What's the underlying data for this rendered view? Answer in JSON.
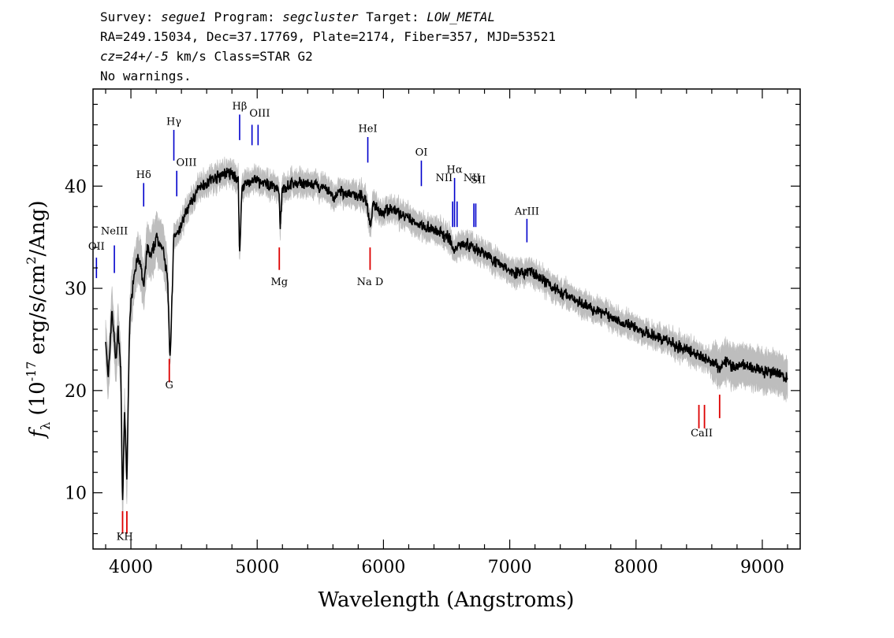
{
  "header": {
    "survey_label": "Survey:",
    "survey": "segue1",
    "program_label": "Program:",
    "program": "segcluster",
    "target_label": "Target:",
    "target": "LOW_METAL",
    "line2": "RA=249.15034, Dec=37.17769, Plate=2174, Fiber=357, MJD=53521",
    "cz": "cz=24+/-5",
    "line3_rest": " km/s Class=STAR G2",
    "line4": "No warnings."
  },
  "chart_data": {
    "type": "line",
    "xlabel": "Wavelength (Angstroms)",
    "ylabel": "f_λ (10^-17 erg/s/cm^2/Ang)",
    "xlim": [
      3700,
      9300
    ],
    "ylim": [
      4.5,
      49.5
    ],
    "xticks": [
      4000,
      5000,
      6000,
      7000,
      8000,
      9000
    ],
    "yticks": [
      10,
      20,
      30,
      40
    ],
    "colors": {
      "spectrum": "#000000",
      "error_band": "#bdbdbd",
      "emission": "#0000cc",
      "absorption": "#dd0000"
    },
    "series": [
      {
        "x": [
          3800,
          3820,
          3850,
          3880,
          3900,
          3920,
          3934,
          3950,
          3968,
          3990,
          4020,
          4050,
          4080,
          4101,
          4130,
          4160,
          4200,
          4250,
          4290,
          4310,
          4340,
          4360,
          4380,
          4420,
          4480,
          4550,
          4620,
          4700,
          4760,
          4820,
          4850,
          4861,
          4880,
          4920,
          4980,
          5050,
          5120,
          5170,
          5183,
          5200,
          5270,
          5350,
          5420,
          5500,
          5580,
          5600,
          5650,
          5720,
          5800,
          5860,
          5890,
          5896,
          5920,
          5980,
          6060,
          6140,
          6220,
          6300,
          6380,
          6460,
          6520,
          6563,
          6600,
          6680,
          6760,
          6840,
          6920,
          7000,
          7080,
          7160,
          7240,
          7320,
          7400,
          7480,
          7560,
          7640,
          7720,
          7800,
          7880,
          7960,
          8040,
          8120,
          8200,
          8280,
          8360,
          8440,
          8500,
          8542,
          8570,
          8620,
          8662,
          8700,
          8780,
          8860,
          8940,
          9020,
          9100,
          9200
        ],
        "y": [
          25,
          21,
          28,
          23,
          26,
          22,
          8.5,
          18,
          11,
          27,
          31,
          33,
          32,
          30,
          34,
          33,
          35,
          34,
          31,
          23,
          35,
          35,
          35.5,
          37,
          38.5,
          40,
          40.5,
          41,
          41.3,
          41,
          40.5,
          33,
          40,
          40.3,
          40.6,
          40.2,
          40.1,
          39.8,
          36,
          39.8,
          40.2,
          40.3,
          40.1,
          39.9,
          39.4,
          38.8,
          39.4,
          39.2,
          39.1,
          38.8,
          36.5,
          36,
          38.3,
          37.5,
          37.8,
          37.2,
          36.6,
          36.2,
          35.8,
          35.3,
          35,
          33.5,
          34.5,
          34.2,
          33.7,
          33.1,
          32.4,
          31.8,
          31.4,
          31.7,
          30.9,
          30.4,
          29.6,
          29.2,
          28.6,
          28.1,
          27.7,
          27.2,
          26.8,
          26.4,
          25.8,
          25.4,
          25.1,
          24.6,
          24.2,
          23.8,
          23.5,
          23,
          23.1,
          22.8,
          22.2,
          22.8,
          22.4,
          22.5,
          22.2,
          21.8,
          21.7,
          21.2
        ]
      }
    ],
    "emission_lines": [
      {
        "label": "OII",
        "x": 3727,
        "y0": 31.0,
        "y1": 33.0
      },
      {
        "label": "NeIII",
        "x": 3869,
        "y0": 31.5,
        "y1": 34.2
      },
      {
        "label": "Hδ",
        "x": 4101,
        "y0": 38.0,
        "y1": 40.3
      },
      {
        "label": "Hγ",
        "x": 4340,
        "y0": 42.5,
        "y1": 45.5
      },
      {
        "label": "OIII",
        "x": 4363,
        "y0": 39.0,
        "y1": 41.5
      },
      {
        "label": "Hβ",
        "x": 4861,
        "y0": 44.5,
        "y1": 47.0
      },
      {
        "label": "OIII",
        "x": 4959,
        "y0": 44.0,
        "y1": 46.0
      },
      {
        "label": "",
        "x": 5007,
        "y0": 44.0,
        "y1": 46.0
      },
      {
        "label": "HeI",
        "x": 5876,
        "y0": 42.3,
        "y1": 44.8
      },
      {
        "label": "OI",
        "x": 6300,
        "y0": 40.0,
        "y1": 42.5
      },
      {
        "label": "NII",
        "x": 6548,
        "y0": 36.0,
        "y1": 38.5
      },
      {
        "label": "Hα",
        "x": 6563,
        "y0": 36.0,
        "y1": 40.8
      },
      {
        "label": "",
        "x": 6583,
        "y0": 36.0,
        "y1": 38.5
      },
      {
        "label": "NII",
        "x": 6716,
        "y0": 36.0,
        "y1": 38.3
      },
      {
        "label": "SII",
        "x": 6731,
        "y0": 36.0,
        "y1": 38.3
      },
      {
        "label": "ArIII",
        "x": 7136,
        "y0": 34.5,
        "y1": 36.8
      }
    ],
    "absorption_lines": [
      {
        "label": "K",
        "x": 3934,
        "y0": 6.0,
        "y1": 8.2
      },
      {
        "label": "H",
        "x": 3968,
        "y0": 6.0,
        "y1": 8.2
      },
      {
        "label": "G",
        "x": 4304,
        "y0": 20.8,
        "y1": 23.1
      },
      {
        "label": "Mg",
        "x": 5175,
        "y0": 31.8,
        "y1": 34.0
      },
      {
        "label": "Na  D",
        "x": 5894,
        "y0": 31.8,
        "y1": 34.0
      },
      {
        "label": "CaII",
        "x": 8498,
        "y0": 16.3,
        "y1": 18.6
      },
      {
        "label": "",
        "x": 8542,
        "y0": 16.3,
        "y1": 18.6
      },
      {
        "label": "",
        "x": 8662,
        "y0": 17.3,
        "y1": 19.6
      }
    ],
    "line_label_positions": [
      {
        "text": "KH",
        "x": 3951,
        "y": 5.4
      },
      {
        "text": "G",
        "x": 4304,
        "y": 20.2
      },
      {
        "text": "Mg",
        "x": 5175,
        "y": 30.3
      },
      {
        "text": "Na  D",
        "x": 5894,
        "y": 30.3
      },
      {
        "text": "CaII",
        "x": 8520,
        "y": 15.5
      },
      {
        "text": "OII",
        "x": 3727,
        "y": 33.8
      },
      {
        "text": "NeIII",
        "x": 3869,
        "y": 35.3
      },
      {
        "text": "Hδ",
        "x": 4101,
        "y": 40.8
      },
      {
        "text": "Hγ",
        "x": 4340,
        "y": 46.0
      },
      {
        "text": "OIII",
        "x": 4440,
        "y": 42.0
      },
      {
        "text": "Hβ",
        "x": 4861,
        "y": 47.5
      },
      {
        "text": "OIII",
        "x": 5020,
        "y": 46.8
      },
      {
        "text": "HeI",
        "x": 5876,
        "y": 45.3
      },
      {
        "text": "OI",
        "x": 6300,
        "y": 43.0
      },
      {
        "text": "NII",
        "x": 6480,
        "y": 40.5
      },
      {
        "text": "Hα",
        "x": 6563,
        "y": 41.3
      },
      {
        "text": "NII",
        "x": 6700,
        "y": 40.5
      },
      {
        "text": "SII",
        "x": 6750,
        "y": 40.3
      },
      {
        "text": "ArIII",
        "x": 7136,
        "y": 37.2
      }
    ]
  }
}
